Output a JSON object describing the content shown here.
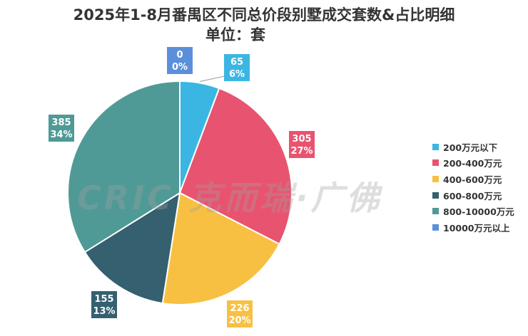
{
  "chart_data": {
    "type": "pie",
    "title": "2025年1-8月番禺区不同总价段别墅成交套数&占比明细",
    "subtitle": "单位：套",
    "categories": [
      "200万元以下",
      "200-400万元",
      "400-600万元",
      "600-800万元",
      "800-10000万元",
      "10000万元以上"
    ],
    "values": [
      65,
      305,
      226,
      155,
      385,
      0
    ],
    "percents": [
      "6%",
      "27%",
      "20%",
      "13%",
      "34%",
      "0%"
    ],
    "colors": [
      "#3BB6E3",
      "#E8546F",
      "#F8C043",
      "#34606F",
      "#4F9A96",
      "#5B8FDB"
    ],
    "legend_position": "right",
    "start_angle_deg": 0,
    "direction": "clockwise"
  },
  "watermark": "CRIC 克而瑞·广佛"
}
